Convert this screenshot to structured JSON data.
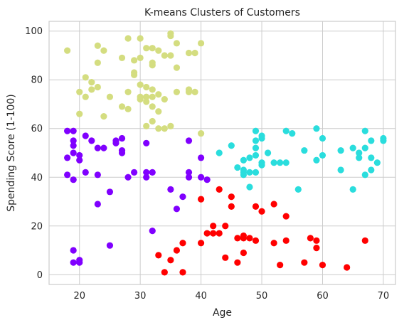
{
  "chart_data": {
    "type": "scatter",
    "title": "K-means Clusters of Customers",
    "xlabel": "Age",
    "ylabel": "Spending Score (1-100)",
    "xlim": [
      15,
      72
    ],
    "ylim": [
      -4,
      104
    ],
    "xticks": [
      20,
      30,
      40,
      50,
      60,
      70
    ],
    "yticks": [
      0,
      20,
      40,
      60,
      80,
      100
    ],
    "grid": true,
    "series": [
      {
        "color": "#8000ff",
        "points": [
          [
            18,
            59
          ],
          [
            19,
            59
          ],
          [
            18,
            48
          ],
          [
            19,
            50
          ],
          [
            20,
            49
          ],
          [
            21,
            57
          ],
          [
            22,
            55
          ],
          [
            23,
            52
          ],
          [
            24,
            52
          ],
          [
            18,
            41
          ],
          [
            19,
            39
          ],
          [
            19,
            53
          ],
          [
            19,
            55
          ],
          [
            20,
            47
          ],
          [
            21,
            42
          ],
          [
            23,
            41
          ],
          [
            23,
            29
          ],
          [
            25,
            34
          ],
          [
            25,
            12
          ],
          [
            26,
            54
          ],
          [
            26,
            55
          ],
          [
            27,
            56
          ],
          [
            27,
            50
          ],
          [
            27,
            51
          ],
          [
            28,
            40
          ],
          [
            29,
            42
          ],
          [
            31,
            40
          ],
          [
            31,
            42
          ],
          [
            31,
            54
          ],
          [
            32,
            42
          ],
          [
            32,
            18
          ],
          [
            35,
            35
          ],
          [
            36,
            27
          ],
          [
            37,
            32
          ],
          [
            38,
            40
          ],
          [
            38,
            42
          ],
          [
            38,
            55
          ],
          [
            40,
            48
          ],
          [
            40,
            40
          ],
          [
            41,
            39
          ],
          [
            19,
            10
          ],
          [
            19,
            5
          ],
          [
            20,
            5
          ],
          [
            20,
            6
          ]
        ]
      },
      {
        "color": "#d4dd80",
        "points": [
          [
            18,
            92
          ],
          [
            20,
            75
          ],
          [
            20,
            66
          ],
          [
            21,
            81
          ],
          [
            21,
            73
          ],
          [
            22,
            76
          ],
          [
            22,
            79
          ],
          [
            23,
            94
          ],
          [
            23,
            87
          ],
          [
            23,
            77
          ],
          [
            24,
            92
          ],
          [
            24,
            65
          ],
          [
            25,
            73
          ],
          [
            27,
            69
          ],
          [
            27,
            89
          ],
          [
            28,
            68
          ],
          [
            28,
            97
          ],
          [
            28,
            75
          ],
          [
            29,
            88
          ],
          [
            29,
            83
          ],
          [
            29,
            82
          ],
          [
            30,
            97
          ],
          [
            30,
            89
          ],
          [
            30,
            78
          ],
          [
            30,
            73
          ],
          [
            30,
            72
          ],
          [
            31,
            93
          ],
          [
            31,
            77
          ],
          [
            31,
            73
          ],
          [
            31,
            71
          ],
          [
            31,
            61
          ],
          [
            32,
            93
          ],
          [
            32,
            87
          ],
          [
            32,
            86
          ],
          [
            32,
            76
          ],
          [
            32,
            73
          ],
          [
            32,
            69
          ],
          [
            32,
            63
          ],
          [
            33,
            92
          ],
          [
            33,
            74
          ],
          [
            33,
            67
          ],
          [
            33,
            60
          ],
          [
            34,
            90
          ],
          [
            34,
            72
          ],
          [
            34,
            60
          ],
          [
            35,
            99
          ],
          [
            35,
            98
          ],
          [
            35,
            90
          ],
          [
            35,
            61
          ],
          [
            36,
            95
          ],
          [
            36,
            75
          ],
          [
            36,
            85
          ],
          [
            38,
            91
          ],
          [
            38,
            76
          ],
          [
            38,
            75
          ],
          [
            39,
            91
          ],
          [
            39,
            75
          ],
          [
            40,
            95
          ],
          [
            40,
            58
          ]
        ]
      },
      {
        "color": "#2adddd",
        "points": [
          [
            43,
            50
          ],
          [
            45,
            53
          ],
          [
            46,
            44
          ],
          [
            47,
            47
          ],
          [
            47,
            43
          ],
          [
            47,
            41
          ],
          [
            47,
            42
          ],
          [
            48,
            48
          ],
          [
            48,
            42
          ],
          [
            48,
            36
          ],
          [
            49,
            59
          ],
          [
            49,
            55
          ],
          [
            49,
            52
          ],
          [
            49,
            49
          ],
          [
            49,
            42
          ],
          [
            50,
            57
          ],
          [
            50,
            56
          ],
          [
            50,
            46
          ],
          [
            50,
            45
          ],
          [
            51,
            50
          ],
          [
            52,
            46
          ],
          [
            53,
            46
          ],
          [
            54,
            59
          ],
          [
            54,
            46
          ],
          [
            55,
            58
          ],
          [
            56,
            35
          ],
          [
            57,
            51
          ],
          [
            59,
            60
          ],
          [
            59,
            47
          ],
          [
            60,
            56
          ],
          [
            60,
            49
          ],
          [
            63,
            51
          ],
          [
            63,
            43
          ],
          [
            65,
            52
          ],
          [
            65,
            35
          ],
          [
            66,
            50
          ],
          [
            66,
            48
          ],
          [
            67,
            59
          ],
          [
            67,
            52
          ],
          [
            67,
            41
          ],
          [
            68,
            55
          ],
          [
            68,
            48
          ],
          [
            68,
            43
          ],
          [
            69,
            46
          ],
          [
            70,
            56
          ],
          [
            70,
            55
          ]
        ]
      },
      {
        "color": "#ff0000",
        "points": [
          [
            33,
            8
          ],
          [
            34,
            1
          ],
          [
            35,
            6
          ],
          [
            36,
            10
          ],
          [
            37,
            13
          ],
          [
            37,
            1
          ],
          [
            40,
            31
          ],
          [
            40,
            13
          ],
          [
            41,
            17
          ],
          [
            42,
            20
          ],
          [
            42,
            17
          ],
          [
            43,
            35
          ],
          [
            43,
            17
          ],
          [
            44,
            20
          ],
          [
            44,
            7
          ],
          [
            45,
            32
          ],
          [
            45,
            28
          ],
          [
            46,
            15
          ],
          [
            46,
            5
          ],
          [
            47,
            16
          ],
          [
            47,
            9
          ],
          [
            47,
            15
          ],
          [
            48,
            15
          ],
          [
            49,
            28
          ],
          [
            49,
            14
          ],
          [
            50,
            26
          ],
          [
            52,
            29
          ],
          [
            52,
            13
          ],
          [
            53,
            4
          ],
          [
            54,
            24
          ],
          [
            54,
            14
          ],
          [
            57,
            5
          ],
          [
            58,
            15
          ],
          [
            59,
            14
          ],
          [
            59,
            11
          ],
          [
            60,
            4
          ],
          [
            64,
            3
          ],
          [
            67,
            14
          ]
        ]
      }
    ]
  }
}
